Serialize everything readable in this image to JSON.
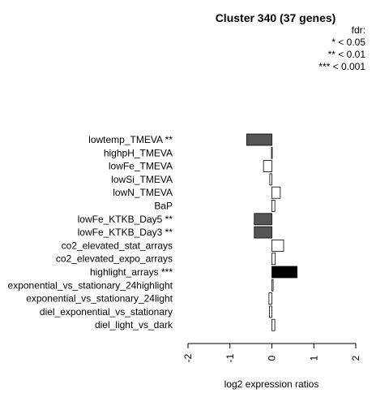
{
  "chart_data": {
    "type": "bar",
    "orientation": "horizontal",
    "title": "Cluster 340 (37 genes)",
    "legend": {
      "title": "fdr:",
      "entries": [
        "* < 0.05",
        "** < 0.01",
        "*** < 0.001"
      ],
      "placement": "top-right"
    },
    "categories": [
      "lowtemp_TMEVA **",
      "highpH_TMEVA",
      "lowFe_TMEVA",
      "lowSi_TMEVA",
      "lowN_TMEVA",
      "BaP",
      "lowFe_KTKB_Day5 **",
      "lowFe_KTKB_Day3 **",
      "co2_elevated_stat_arrays",
      "co2_elevated_expo_arrays",
      "highlight_arrays ***",
      "exponential_vs_stationary_24highlight",
      "exponential_vs_stationary_24light",
      "diel_exponential_vs_stationary",
      "diel_light_vs_dark"
    ],
    "values": [
      -0.6,
      -0.01,
      -0.2,
      -0.05,
      0.2,
      0.07,
      -0.42,
      -0.42,
      0.28,
      0.08,
      0.6,
      0.03,
      -0.07,
      -0.06,
      0.07
    ],
    "bar_colors": [
      "#555555",
      "#ffffff",
      "#ffffff",
      "#ffffff",
      "#ffffff",
      "#ffffff",
      "#555555",
      "#555555",
      "#ffffff",
      "#ffffff",
      "#000000",
      "#ffffff",
      "#ffffff",
      "#ffffff",
      "#ffffff"
    ],
    "xlabel": "log2 expression ratios",
    "xlim": [
      -2,
      2
    ],
    "xticks": [
      "-2",
      "-1",
      "0",
      "1",
      "2"
    ],
    "grid": false
  }
}
